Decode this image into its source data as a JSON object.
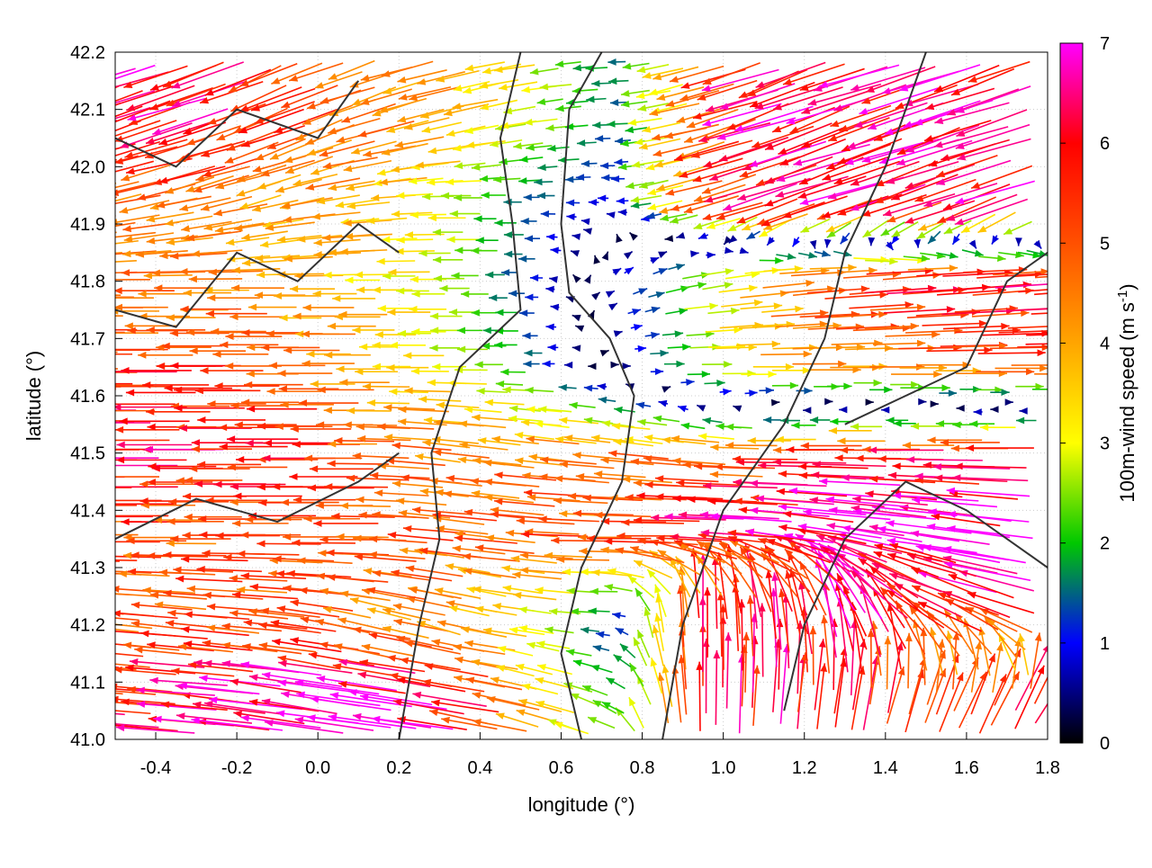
{
  "chart_data": {
    "type": "quiver",
    "title": "",
    "xlabel": "longitude (°)",
    "ylabel": "latitude (°)",
    "xlim": [
      -0.5,
      1.8
    ],
    "ylim": [
      41.0,
      42.2
    ],
    "xticks": [
      "-0.4",
      "-0.2",
      "0.0",
      "0.2",
      "0.4",
      "0.6",
      "0.8",
      "1.0",
      "1.2",
      "1.4",
      "1.6",
      "1.8"
    ],
    "xtick_values": [
      -0.4,
      -0.2,
      0.0,
      0.2,
      0.4,
      0.6,
      0.8,
      1.0,
      1.2,
      1.4,
      1.6,
      1.8
    ],
    "yticks": [
      "41.0",
      "41.1",
      "41.2",
      "41.3",
      "41.4",
      "41.5",
      "41.6",
      "41.7",
      "41.8",
      "41.9",
      "42.0",
      "42.1",
      "42.2"
    ],
    "ytick_values": [
      41.0,
      41.1,
      41.2,
      41.3,
      41.4,
      41.5,
      41.6,
      41.7,
      41.8,
      41.9,
      42.0,
      42.1,
      42.2
    ],
    "grid": true,
    "colorbar": {
      "label": "100m-wind speed (m s",
      "label_sup": "-1",
      "label_end": ")",
      "range": [
        0,
        7
      ],
      "ticks": [
        "0",
        "1",
        "2",
        "3",
        "4",
        "5",
        "6",
        "7"
      ],
      "colors": [
        "#000000",
        "#0000ff",
        "#00c800",
        "#ffff00",
        "#ffa500",
        "#ff5000",
        "#ff0000",
        "#ff00ff"
      ]
    },
    "vector_grid": {
      "lon": [
        -0.45,
        -0.25,
        -0.05,
        0.15,
        0.35,
        0.55,
        0.75,
        0.95,
        1.15,
        1.35,
        1.55,
        1.75
      ],
      "lat": [
        41.05,
        41.2,
        41.35,
        41.5,
        41.65,
        41.8,
        41.95,
        42.1
      ],
      "u": [
        [
          -6,
          -6.5,
          -7,
          -7,
          -6.5,
          -4,
          -2,
          0,
          0.5,
          1,
          2,
          3
        ],
        [
          -5,
          -5,
          -5,
          -4.5,
          -4,
          -3,
          -1,
          0,
          -1,
          -3,
          -5,
          -6
        ],
        [
          -5,
          -5,
          -5,
          -5,
          -5,
          -5,
          -5,
          -6,
          -6.5,
          -7,
          -7,
          -7
        ],
        [
          -6,
          -6,
          -6,
          -5,
          -4.5,
          -4.5,
          -4.5,
          -4.5,
          -5,
          -6,
          -6,
          -6
        ],
        [
          -5.5,
          -5.5,
          -5,
          -4,
          -3,
          -1.5,
          0.5,
          3,
          4,
          4.5,
          5,
          5
        ],
        [
          -4.5,
          -4.5,
          -4,
          -3.5,
          -3,
          -1,
          1,
          3,
          5,
          6,
          6,
          6
        ],
        [
          -4.5,
          -4.5,
          -4,
          -4,
          -3,
          -1.5,
          -1,
          -4,
          -6,
          -6,
          -6,
          -6
        ],
        [
          -6,
          -6,
          -5,
          -4.5,
          -4,
          -3,
          -1.5,
          -4,
          -6,
          -6,
          -6,
          -6
        ]
      ],
      "v": [
        [
          0.5,
          0.5,
          1,
          1,
          1,
          1,
          1,
          6,
          6,
          5.5,
          5,
          5
        ],
        [
          0.5,
          0.5,
          0.5,
          1,
          1,
          0.5,
          0,
          6,
          6,
          6,
          3,
          2
        ],
        [
          0,
          0,
          0,
          0,
          0.5,
          0.5,
          0,
          0,
          0.5,
          1,
          1,
          1
        ],
        [
          0,
          0,
          0,
          0,
          0.5,
          0.5,
          0.5,
          0.5,
          0,
          0,
          0,
          0
        ],
        [
          0,
          0,
          0,
          0,
          0,
          0,
          0,
          0,
          0,
          0,
          0,
          0
        ],
        [
          0,
          0,
          0,
          0,
          0,
          0,
          0.5,
          0.5,
          0.5,
          0.5,
          0.5,
          0.5
        ],
        [
          -1,
          -1,
          -1,
          -0.5,
          0,
          0,
          0,
          -1,
          -2,
          -2,
          -2,
          -2
        ],
        [
          -2,
          -2,
          -2,
          -1.5,
          -1,
          -0.5,
          0,
          -1,
          -2,
          -2,
          -2,
          -2
        ]
      ]
    },
    "contours": [
      [
        [
          0.2,
          41.0
        ],
        [
          0.25,
          41.2
        ],
        [
          0.3,
          41.35
        ],
        [
          0.28,
          41.5
        ],
        [
          0.35,
          41.65
        ],
        [
          0.5,
          41.75
        ],
        [
          0.48,
          41.9
        ],
        [
          0.45,
          42.05
        ],
        [
          0.5,
          42.2
        ]
      ],
      [
        [
          0.65,
          41.0
        ],
        [
          0.6,
          41.15
        ],
        [
          0.65,
          41.3
        ],
        [
          0.75,
          41.45
        ],
        [
          0.78,
          41.6
        ],
        [
          0.72,
          41.7
        ],
        [
          0.62,
          41.78
        ],
        [
          0.6,
          41.9
        ],
        [
          0.62,
          42.1
        ],
        [
          0.7,
          42.2
        ]
      ],
      [
        [
          0.85,
          41.0
        ],
        [
          0.9,
          41.2
        ],
        [
          1.0,
          41.4
        ],
        [
          1.15,
          41.55
        ],
        [
          1.25,
          41.7
        ],
        [
          1.3,
          41.85
        ],
        [
          1.4,
          42.0
        ],
        [
          1.5,
          42.2
        ]
      ],
      [
        [
          -0.5,
          41.35
        ],
        [
          -0.3,
          41.42
        ],
        [
          -0.1,
          41.38
        ],
        [
          0.1,
          41.45
        ],
        [
          0.2,
          41.5
        ]
      ],
      [
        [
          -0.5,
          41.75
        ],
        [
          -0.35,
          41.72
        ],
        [
          -0.2,
          41.85
        ],
        [
          -0.05,
          41.8
        ],
        [
          0.1,
          41.9
        ],
        [
          0.2,
          41.85
        ]
      ],
      [
        [
          -0.5,
          42.05
        ],
        [
          -0.35,
          42.0
        ],
        [
          -0.2,
          42.1
        ],
        [
          0.0,
          42.05
        ],
        [
          0.1,
          42.15
        ]
      ],
      [
        [
          1.15,
          41.05
        ],
        [
          1.2,
          41.2
        ],
        [
          1.3,
          41.35
        ],
        [
          1.45,
          41.45
        ],
        [
          1.6,
          41.4
        ],
        [
          1.8,
          41.3
        ]
      ],
      [
        [
          1.3,
          41.55
        ],
        [
          1.45,
          41.6
        ],
        [
          1.6,
          41.65
        ],
        [
          1.7,
          41.8
        ],
        [
          1.8,
          41.85
        ]
      ]
    ]
  }
}
